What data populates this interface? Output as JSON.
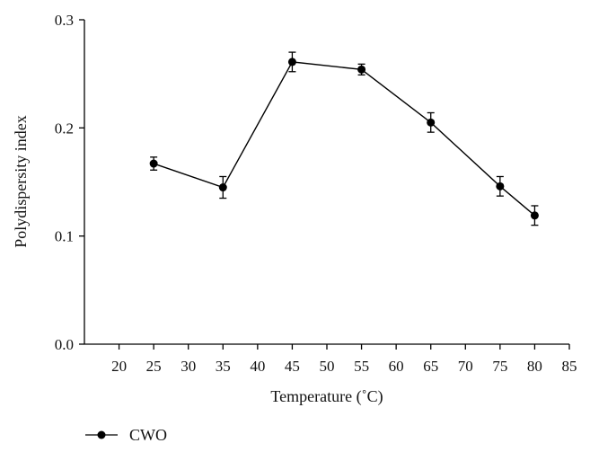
{
  "chart_data": {
    "type": "line",
    "title": "",
    "xlabel": "Temperature (˚C)",
    "ylabel": "Polydispersity index",
    "xlim": [
      15,
      85
    ],
    "ylim": [
      0.0,
      0.3
    ],
    "x_ticks": [
      20,
      25,
      30,
      35,
      40,
      45,
      50,
      55,
      60,
      65,
      70,
      75,
      80,
      85
    ],
    "x_tick_labels": [
      "20",
      "25",
      "30",
      "35",
      "40",
      "45",
      "50",
      "55",
      "60",
      "65",
      "70",
      "75",
      "80",
      "85"
    ],
    "y_ticks": [
      0.0,
      0.1,
      0.2,
      0.3
    ],
    "y_tick_labels": [
      "0.0",
      "0.1",
      "0.2",
      "0.3"
    ],
    "grid": false,
    "legend_position": "bottom-left",
    "series": [
      {
        "name": "CWO",
        "color": "#000000",
        "marker": "circle",
        "x": [
          25,
          35,
          45,
          55,
          65,
          75,
          80
        ],
        "y": [
          0.167,
          0.145,
          0.261,
          0.254,
          0.205,
          0.146,
          0.119
        ],
        "error": [
          0.006,
          0.01,
          0.009,
          0.005,
          0.009,
          0.009,
          0.009
        ]
      }
    ]
  }
}
